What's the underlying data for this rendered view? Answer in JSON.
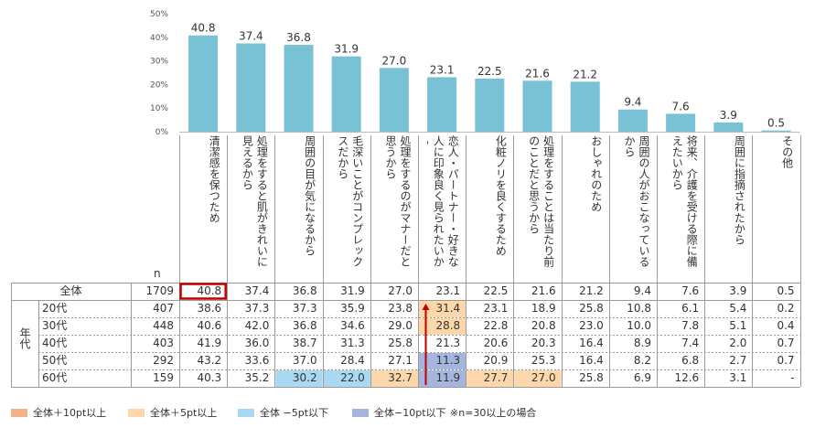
{
  "chart_data": {
    "type": "bar",
    "yticks": [
      "50%",
      "40%",
      "30%",
      "20%",
      "10%",
      "0%"
    ],
    "ylim": [
      0,
      50
    ],
    "categories": [
      "清潔感を保つため",
      "処理をすると肌がきれいに見えるから",
      "周囲の目が気になるから",
      "毛深いことがコンプレックスだから",
      "処理をするのがマナーだと思うから",
      "恋人・パートナー・好きな人に印象良く見られたいから",
      "化粧ノリを良くするため",
      "処理をすることは当たり前のことだと思うから",
      "おしゃれのため",
      "周囲の人がおこなっているから",
      "将来、介護を受ける際に備えたいから",
      "周囲に指摘されたから",
      "その他"
    ],
    "values": [
      40.8,
      37.4,
      36.8,
      31.9,
      27.0,
      23.1,
      22.5,
      21.6,
      21.2,
      9.4,
      7.6,
      3.9,
      0.5
    ],
    "value_labels": [
      "40.8",
      "37.4",
      "36.8",
      "31.9",
      "27.0",
      "23.1",
      "22.5",
      "21.6",
      "21.2",
      "9.4",
      "7.6",
      "3.9",
      "0.5"
    ],
    "bar_color": "#79c2d5"
  },
  "table": {
    "n_header": "n",
    "group_label": "年代",
    "rows": [
      {
        "label": "全体",
        "n": "1709",
        "values": [
          "40.8",
          "37.4",
          "36.8",
          "31.9",
          "27.0",
          "23.1",
          "22.5",
          "21.6",
          "21.2",
          "9.4",
          "7.6",
          "3.9",
          "0.5"
        ]
      },
      {
        "label": "20代",
        "n": "407",
        "values": [
          "38.6",
          "37.3",
          "37.3",
          "35.9",
          "23.8",
          "31.4",
          "23.1",
          "18.9",
          "25.8",
          "10.8",
          "6.1",
          "5.4",
          "0.2"
        ]
      },
      {
        "label": "30代",
        "n": "448",
        "values": [
          "40.6",
          "42.0",
          "36.8",
          "34.6",
          "29.0",
          "28.8",
          "22.8",
          "20.8",
          "23.0",
          "10.0",
          "7.8",
          "5.1",
          "0.4"
        ]
      },
      {
        "label": "40代",
        "n": "403",
        "values": [
          "41.9",
          "36.0",
          "38.7",
          "31.3",
          "25.8",
          "21.3",
          "20.6",
          "20.3",
          "16.4",
          "8.9",
          "7.4",
          "2.0",
          "0.7"
        ]
      },
      {
        "label": "50代",
        "n": "292",
        "values": [
          "43.2",
          "33.6",
          "37.0",
          "28.4",
          "27.1",
          "11.3",
          "20.9",
          "25.3",
          "16.4",
          "8.2",
          "6.8",
          "2.7",
          "0.7"
        ]
      },
      {
        "label": "60代",
        "n": "159",
        "values": [
          "40.3",
          "35.2",
          "30.2",
          "22.0",
          "32.7",
          "11.9",
          "27.7",
          "27.0",
          "25.8",
          "6.9",
          "12.6",
          "3.1",
          "-"
        ]
      }
    ],
    "highlights": [
      {
        "row": 1,
        "col": 5,
        "kind": "plus5"
      },
      {
        "row": 2,
        "col": 5,
        "kind": "plus5"
      },
      {
        "row": 4,
        "col": 5,
        "kind": "minus10"
      },
      {
        "row": 5,
        "col": 2,
        "kind": "minus5"
      },
      {
        "row": 5,
        "col": 3,
        "kind": "minus5"
      },
      {
        "row": 5,
        "col": 4,
        "kind": "plus5"
      },
      {
        "row": 5,
        "col": 5,
        "kind": "minus10"
      },
      {
        "row": 5,
        "col": 6,
        "kind": "plus5"
      },
      {
        "row": 5,
        "col": 7,
        "kind": "plus5"
      }
    ]
  },
  "legend": {
    "items": [
      {
        "label": "全体＋10pt以上",
        "color": "#f4b183"
      },
      {
        "label": "全体＋5pt以上",
        "color": "#fbd7a9"
      },
      {
        "label": "全体 −5pt以下",
        "color": "#a9d8f2"
      },
      {
        "label": "全体−10pt以下",
        "color": "#a4b5de"
      }
    ],
    "note": "※n=30以上の場合"
  },
  "colors": {
    "plus10": "#f4b183",
    "plus5": "#fbd7a9",
    "minus5": "#a9d8f2",
    "minus10": "#a4b5de",
    "frame": "#c00000",
    "arrow": "#c00000"
  }
}
